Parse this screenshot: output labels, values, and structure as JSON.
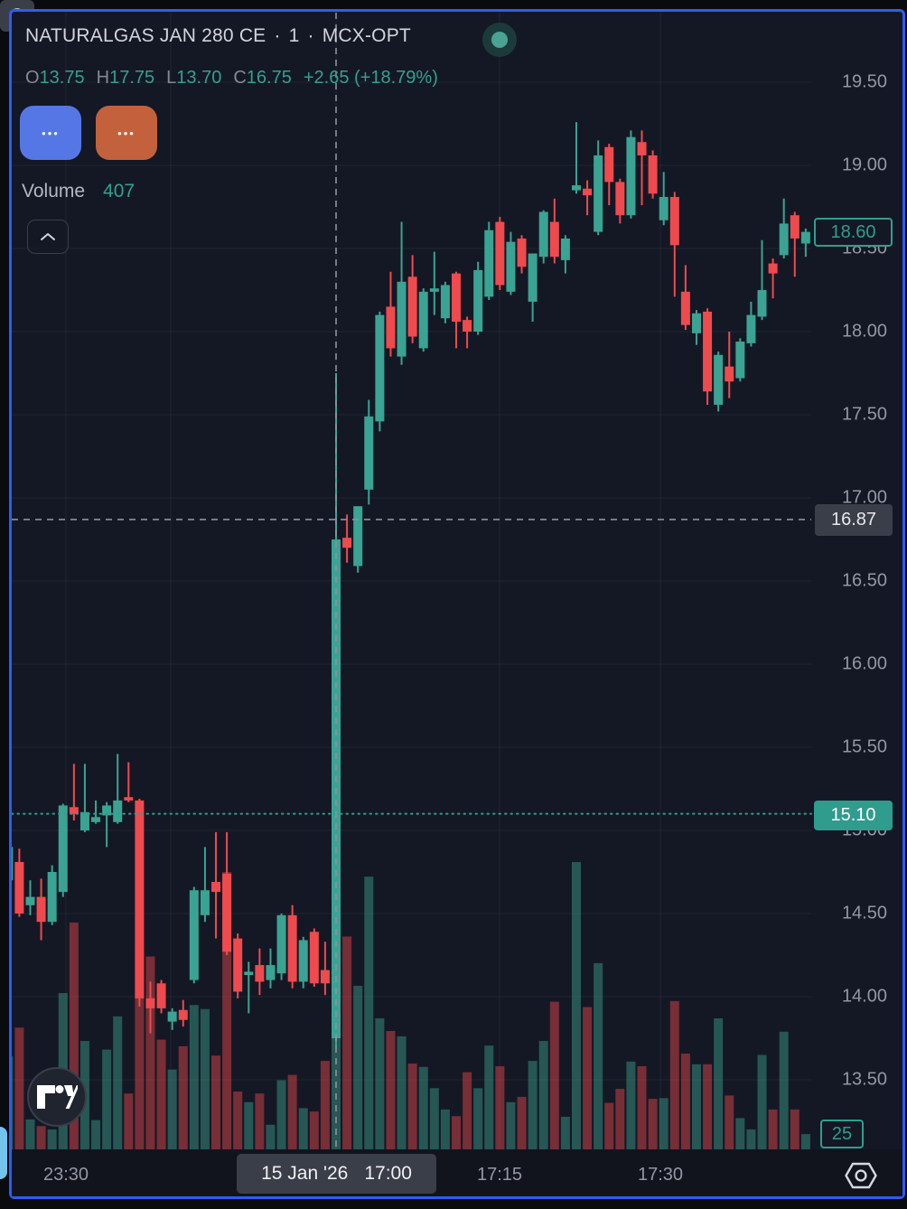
{
  "header": {
    "symbol": "NATURALGAS JAN 280 CE",
    "separator": "·",
    "interval": "1",
    "exchange": "MCX-OPT",
    "ohlc": {
      "o_label": "O",
      "o_value": "13.75",
      "h_label": "H",
      "h_value": "17.75",
      "l_label": "L",
      "l_value": "13.70",
      "c_label": "C",
      "c_value": "16.75",
      "change": "+2.65",
      "change_pct": "(+18.79%)"
    }
  },
  "toolbar": {
    "blue_button_label": "•••",
    "orange_button_label": "•••"
  },
  "volume_row": {
    "label": "Volume",
    "value": "407"
  },
  "price_axis": {
    "ticks": [
      "19.50",
      "19.00",
      "18.50",
      "18.00",
      "17.50",
      "17.00",
      "16.50",
      "16.00",
      "15.50",
      "15.00",
      "14.50",
      "14.00",
      "13.50"
    ],
    "last_price_label": "18.60",
    "crosshair_price_label": "16.87",
    "prev_close_label": "15.10",
    "volume_label": "25"
  },
  "time_axis": {
    "labels": [
      "23:30",
      "17:15",
      "17:30"
    ],
    "crosshair_date": "15 Jan '26",
    "crosshair_time": "17:00"
  },
  "colors": {
    "up": "#3ba393",
    "down": "#ef4a4e",
    "teal_accent": "#2f9e8f",
    "frame_blue": "#2d5cf5",
    "blue_button": "#5577e6",
    "orange_button": "#c4613d",
    "background": "#141824",
    "crosshair": "#8f939d"
  },
  "chart_data": {
    "type": "candlestick_with_volume",
    "title": "NATURALGAS JAN 280 CE",
    "interval": "1 minute",
    "exchange": "MCX-OPT",
    "price_ticks": [
      19.5,
      19.0,
      18.5,
      18.0,
      17.5,
      17.0,
      16.5,
      16.0,
      15.5,
      15.0,
      14.5,
      14.0,
      13.5
    ],
    "ylim": [
      13.35,
      19.72
    ],
    "volume_axis_tick": 25,
    "last_close": 18.6,
    "prev_close_line": 15.1,
    "crosshair": {
      "price": 16.87,
      "candle_index": 30,
      "date": "15 Jan '26",
      "time": "17:00"
    },
    "time_labels": [
      {
        "text": "23:30",
        "x": 73
      },
      {
        "text": "17:15",
        "x": 553
      },
      {
        "text": "17:30",
        "x": 731
      }
    ],
    "vertical_gridline_x": [
      73,
      189,
      372,
      553,
      731
    ],
    "candle_format": [
      "open",
      "high",
      "low",
      "close",
      "volume"
    ],
    "candles": [
      [
        14.7,
        14.92,
        14.66,
        14.9,
        140
      ],
      [
        14.81,
        14.89,
        14.48,
        14.5,
        183
      ],
      [
        14.55,
        14.7,
        14.49,
        14.6,
        45
      ],
      [
        14.6,
        14.71,
        14.34,
        14.45,
        35
      ],
      [
        14.45,
        14.79,
        14.43,
        14.75,
        30
      ],
      [
        14.63,
        15.16,
        14.6,
        15.15,
        235
      ],
      [
        15.14,
        15.4,
        15.06,
        15.1,
        341
      ],
      [
        15.0,
        15.4,
        14.99,
        15.11,
        163
      ],
      [
        15.05,
        15.18,
        15.04,
        15.08,
        44
      ],
      [
        15.09,
        15.17,
        14.9,
        15.15,
        150
      ],
      [
        15.05,
        15.46,
        15.04,
        15.18,
        200
      ],
      [
        15.2,
        15.41,
        15.17,
        15.18,
        84
      ],
      [
        15.18,
        15.19,
        13.94,
        13.99,
        300
      ],
      [
        13.99,
        14.09,
        13.78,
        13.93,
        290
      ],
      [
        14.08,
        14.1,
        13.9,
        13.93,
        165
      ],
      [
        13.85,
        13.93,
        13.8,
        13.91,
        120
      ],
      [
        13.92,
        13.98,
        13.82,
        13.86,
        155
      ],
      [
        14.1,
        14.66,
        14.08,
        14.64,
        217
      ],
      [
        14.49,
        14.9,
        14.45,
        14.64,
        211
      ],
      [
        14.69,
        14.99,
        14.35,
        14.63,
        141
      ],
      [
        14.74,
        14.99,
        14.25,
        14.27,
        417
      ],
      [
        14.35,
        14.38,
        13.99,
        14.03,
        87
      ],
      [
        14.13,
        14.21,
        13.9,
        14.15,
        71
      ],
      [
        14.19,
        14.29,
        14.01,
        14.09,
        84
      ],
      [
        14.1,
        14.29,
        14.05,
        14.19,
        37
      ],
      [
        14.14,
        14.5,
        14.1,
        14.49,
        104
      ],
      [
        14.49,
        14.55,
        14.05,
        14.09,
        112
      ],
      [
        14.09,
        14.36,
        14.05,
        14.34,
        62
      ],
      [
        14.39,
        14.41,
        14.06,
        14.08,
        57
      ],
      [
        14.16,
        14.33,
        14.01,
        14.08,
        133
      ],
      [
        13.75,
        17.75,
        13.7,
        16.75,
        407
      ],
      [
        16.76,
        16.9,
        16.61,
        16.7,
        320
      ],
      [
        16.59,
        16.95,
        16.55,
        16.95,
        246
      ],
      [
        17.05,
        17.59,
        16.96,
        17.49,
        410
      ],
      [
        17.46,
        18.12,
        17.4,
        18.1,
        197
      ],
      [
        18.15,
        18.36,
        17.85,
        17.9,
        178
      ],
      [
        17.85,
        18.66,
        17.8,
        18.3,
        170
      ],
      [
        18.33,
        18.46,
        17.93,
        17.97,
        129
      ],
      [
        17.9,
        18.26,
        17.88,
        18.24,
        124
      ],
      [
        18.24,
        18.48,
        18.1,
        18.26,
        92
      ],
      [
        18.08,
        18.3,
        18.05,
        18.28,
        60
      ],
      [
        18.35,
        18.36,
        17.9,
        18.06,
        50
      ],
      [
        18.07,
        18.09,
        17.9,
        18.0,
        116
      ],
      [
        18.0,
        18.42,
        17.98,
        18.37,
        92
      ],
      [
        18.21,
        18.66,
        18.19,
        18.61,
        156
      ],
      [
        18.66,
        18.69,
        18.25,
        18.28,
        125
      ],
      [
        18.24,
        18.6,
        18.22,
        18.54,
        71
      ],
      [
        18.56,
        18.58,
        18.35,
        18.39,
        79
      ],
      [
        18.18,
        18.47,
        18.06,
        18.47,
        133
      ],
      [
        18.45,
        18.73,
        18.41,
        18.72,
        163
      ],
      [
        18.66,
        18.8,
        18.41,
        18.45,
        222
      ],
      [
        18.43,
        18.58,
        18.35,
        18.56,
        49
      ],
      [
        18.85,
        19.26,
        18.83,
        18.88,
        432
      ],
      [
        18.86,
        18.91,
        18.7,
        18.82,
        214
      ],
      [
        18.6,
        19.15,
        18.58,
        19.06,
        280
      ],
      [
        19.11,
        19.13,
        18.76,
        18.9,
        70
      ],
      [
        18.9,
        18.92,
        18.65,
        18.7,
        91
      ],
      [
        18.7,
        19.21,
        18.68,
        19.17,
        132
      ],
      [
        19.14,
        19.21,
        18.76,
        19.06,
        125
      ],
      [
        19.06,
        19.09,
        18.8,
        18.83,
        76
      ],
      [
        18.67,
        18.96,
        18.64,
        18.81,
        77
      ],
      [
        18.81,
        18.84,
        18.21,
        18.52,
        223
      ],
      [
        18.24,
        18.4,
        18.01,
        18.04,
        144
      ],
      [
        17.99,
        18.13,
        17.92,
        18.11,
        128
      ],
      [
        18.12,
        18.14,
        17.56,
        17.64,
        128
      ],
      [
        17.56,
        17.88,
        17.52,
        17.86,
        197
      ],
      [
        17.79,
        18.0,
        17.6,
        17.7,
        81
      ],
      [
        17.72,
        17.96,
        17.7,
        17.94,
        47
      ],
      [
        17.93,
        18.18,
        17.91,
        18.1,
        30
      ],
      [
        18.09,
        18.55,
        18.07,
        18.25,
        142
      ],
      [
        18.41,
        18.44,
        18.2,
        18.35,
        60
      ],
      [
        18.46,
        18.8,
        18.44,
        18.65,
        177
      ],
      [
        18.7,
        18.72,
        18.33,
        18.56,
        60
      ],
      [
        18.53,
        18.62,
        18.45,
        18.6,
        23
      ]
    ]
  }
}
